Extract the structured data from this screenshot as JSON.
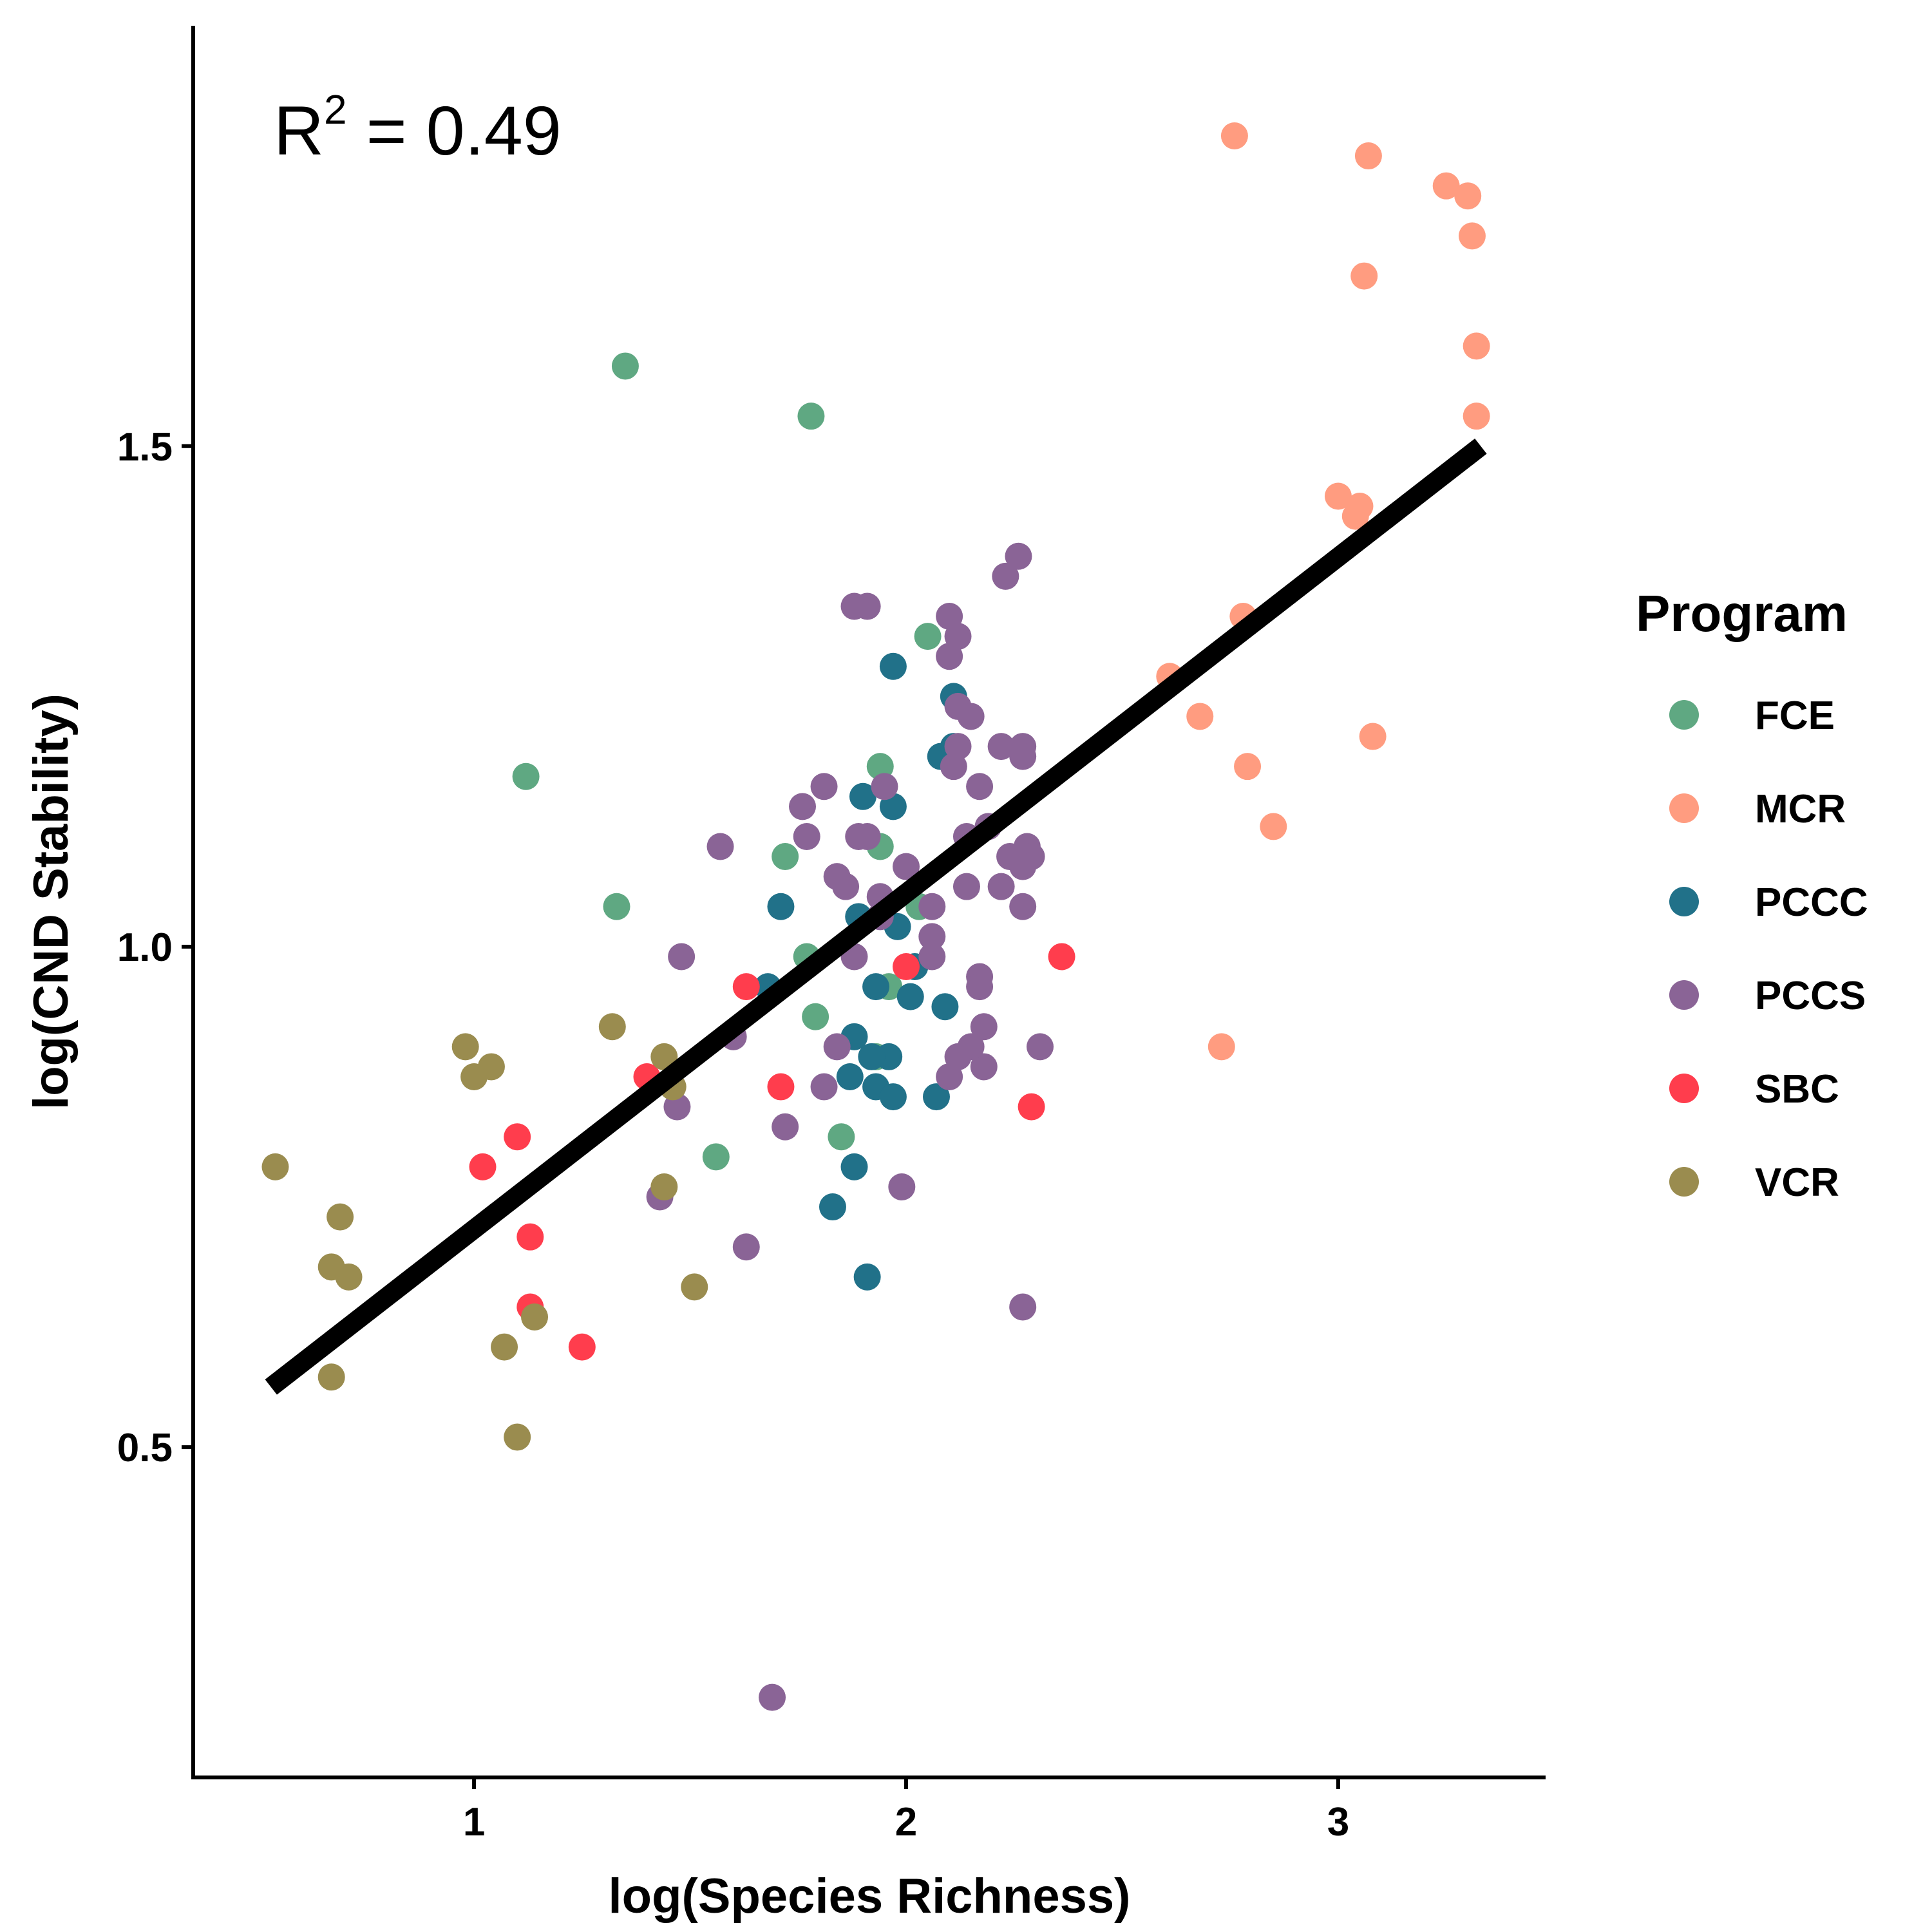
{
  "chart_data": {
    "type": "scatter",
    "title": "",
    "xlabel": "log(Species Richness)",
    "ylabel": "log(CND Stability)",
    "xlim": [
      0.35,
      3.48
    ],
    "ylim": [
      0.17,
      1.92
    ],
    "x_ticks": [
      1,
      2,
      3
    ],
    "x_tick_labels": [
      "1",
      "2",
      "3"
    ],
    "y_ticks": [
      0.5,
      1.0,
      1.5
    ],
    "y_tick_labels": [
      "0.5",
      "1.0",
      "1.5"
    ],
    "grid": false,
    "legend": {
      "title": "Program",
      "placement": "right"
    },
    "annotation": {
      "prefix": "R",
      "superscript": "2",
      "suffix": " = 0.49"
    },
    "fit_line": {
      "x": [
        0.53,
        3.33
      ],
      "y": [
        0.56,
        1.5
      ],
      "color": "#000000"
    },
    "series": [
      {
        "name": "FCE",
        "color": "#5FA882",
        "points": [
          [
            1.35,
            1.58
          ],
          [
            1.78,
            1.53
          ],
          [
            1.12,
            1.17
          ],
          [
            1.33,
            1.04
          ],
          [
            2.05,
            1.31
          ],
          [
            1.94,
            1.18
          ],
          [
            1.94,
            1.1
          ],
          [
            1.72,
            1.09
          ],
          [
            1.77,
            0.99
          ],
          [
            1.79,
            0.93
          ],
          [
            1.56,
            0.79
          ],
          [
            1.85,
            0.81
          ],
          [
            1.96,
            0.96
          ],
          [
            1.93,
            0.89
          ],
          [
            2.03,
            1.04
          ]
        ]
      },
      {
        "name": "MCR",
        "color": "#FF9C80",
        "points": [
          [
            2.76,
            1.81
          ],
          [
            3.07,
            1.79
          ],
          [
            3.25,
            1.76
          ],
          [
            3.3,
            1.75
          ],
          [
            3.31,
            1.71
          ],
          [
            3.06,
            1.67
          ],
          [
            3.32,
            1.6
          ],
          [
            3.32,
            1.53
          ],
          [
            3.0,
            1.45
          ],
          [
            3.05,
            1.44
          ],
          [
            3.04,
            1.43
          ],
          [
            2.78,
            1.33
          ],
          [
            2.61,
            1.27
          ],
          [
            2.68,
            1.23
          ],
          [
            3.08,
            1.21
          ],
          [
            2.79,
            1.18
          ],
          [
            2.85,
            1.12
          ],
          [
            2.73,
            0.9
          ]
        ]
      },
      {
        "name": "PCCC",
        "color": "#217189",
        "points": [
          [
            1.97,
            1.28
          ],
          [
            2.11,
            1.25
          ],
          [
            2.08,
            1.19
          ],
          [
            2.11,
            1.2
          ],
          [
            1.9,
            1.15
          ],
          [
            1.97,
            1.14
          ],
          [
            1.71,
            1.04
          ],
          [
            1.89,
            1.03
          ],
          [
            1.98,
            1.02
          ],
          [
            2.02,
            0.98
          ],
          [
            1.93,
            0.96
          ],
          [
            2.01,
            0.95
          ],
          [
            2.09,
            0.94
          ],
          [
            1.68,
            0.96
          ],
          [
            1.88,
            0.91
          ],
          [
            1.96,
            0.89
          ],
          [
            1.92,
            0.89
          ],
          [
            1.87,
            0.87
          ],
          [
            1.93,
            0.86
          ],
          [
            1.97,
            0.85
          ],
          [
            2.07,
            0.85
          ],
          [
            1.88,
            0.78
          ],
          [
            1.83,
            0.74
          ],
          [
            1.91,
            0.67
          ]
        ]
      },
      {
        "name": "PCCS",
        "color": "#8A6496",
        "points": [
          [
            2.26,
            1.39
          ],
          [
            2.23,
            1.37
          ],
          [
            1.88,
            1.34
          ],
          [
            1.91,
            1.34
          ],
          [
            2.1,
            1.33
          ],
          [
            2.12,
            1.31
          ],
          [
            2.1,
            1.29
          ],
          [
            2.12,
            1.24
          ],
          [
            2.15,
            1.23
          ],
          [
            2.12,
            1.2
          ],
          [
            2.22,
            1.2
          ],
          [
            2.27,
            1.2
          ],
          [
            2.27,
            1.19
          ],
          [
            2.11,
            1.18
          ],
          [
            1.95,
            1.16
          ],
          [
            2.17,
            1.16
          ],
          [
            1.81,
            1.16
          ],
          [
            1.76,
            1.14
          ],
          [
            1.57,
            1.1
          ],
          [
            1.77,
            1.11
          ],
          [
            1.89,
            1.11
          ],
          [
            1.91,
            1.11
          ],
          [
            2.14,
            1.11
          ],
          [
            2.19,
            1.12
          ],
          [
            2.28,
            1.1
          ],
          [
            2.29,
            1.09
          ],
          [
            2.24,
            1.09
          ],
          [
            2.27,
            1.08
          ],
          [
            2.0,
            1.08
          ],
          [
            1.84,
            1.07
          ],
          [
            1.86,
            1.06
          ],
          [
            1.94,
            1.05
          ],
          [
            2.14,
            1.06
          ],
          [
            2.22,
            1.06
          ],
          [
            2.06,
            1.04
          ],
          [
            2.27,
            1.04
          ],
          [
            1.94,
            1.03
          ],
          [
            2.06,
            1.01
          ],
          [
            2.06,
            0.99
          ],
          [
            1.48,
            0.99
          ],
          [
            1.88,
            0.99
          ],
          [
            2.17,
            0.97
          ],
          [
            2.17,
            0.96
          ],
          [
            1.6,
            0.91
          ],
          [
            1.84,
            0.9
          ],
          [
            2.18,
            0.92
          ],
          [
            2.31,
            0.9
          ],
          [
            2.12,
            0.89
          ],
          [
            2.18,
            0.88
          ],
          [
            2.15,
            0.9
          ],
          [
            2.1,
            0.87
          ],
          [
            1.81,
            0.86
          ],
          [
            1.72,
            0.82
          ],
          [
            1.47,
            0.84
          ],
          [
            1.43,
            0.75
          ],
          [
            1.99,
            0.76
          ],
          [
            1.63,
            0.7
          ],
          [
            2.27,
            0.64
          ],
          [
            1.69,
            0.25
          ]
        ]
      },
      {
        "name": "SBC",
        "color": "#FF3D4D",
        "points": [
          [
            2.36,
            0.99
          ],
          [
            2.0,
            0.98
          ],
          [
            1.63,
            0.96
          ],
          [
            1.4,
            0.87
          ],
          [
            1.71,
            0.86
          ],
          [
            2.29,
            0.84
          ],
          [
            1.1,
            0.81
          ],
          [
            1.02,
            0.78
          ],
          [
            1.13,
            0.71
          ],
          [
            1.13,
            0.64
          ],
          [
            1.25,
            0.6
          ]
        ]
      },
      {
        "name": "VCR",
        "color": "#9A8C4F",
        "points": [
          [
            1.32,
            0.92
          ],
          [
            0.98,
            0.9
          ],
          [
            1.04,
            0.88
          ],
          [
            1.0,
            0.87
          ],
          [
            1.44,
            0.89
          ],
          [
            1.46,
            0.86
          ],
          [
            0.54,
            0.78
          ],
          [
            0.69,
            0.73
          ],
          [
            1.44,
            0.76
          ],
          [
            0.67,
            0.68
          ],
          [
            0.71,
            0.67
          ],
          [
            1.51,
            0.66
          ],
          [
            1.14,
            0.63
          ],
          [
            1.07,
            0.6
          ],
          [
            0.67,
            0.57
          ],
          [
            1.1,
            0.51
          ]
        ]
      }
    ]
  }
}
